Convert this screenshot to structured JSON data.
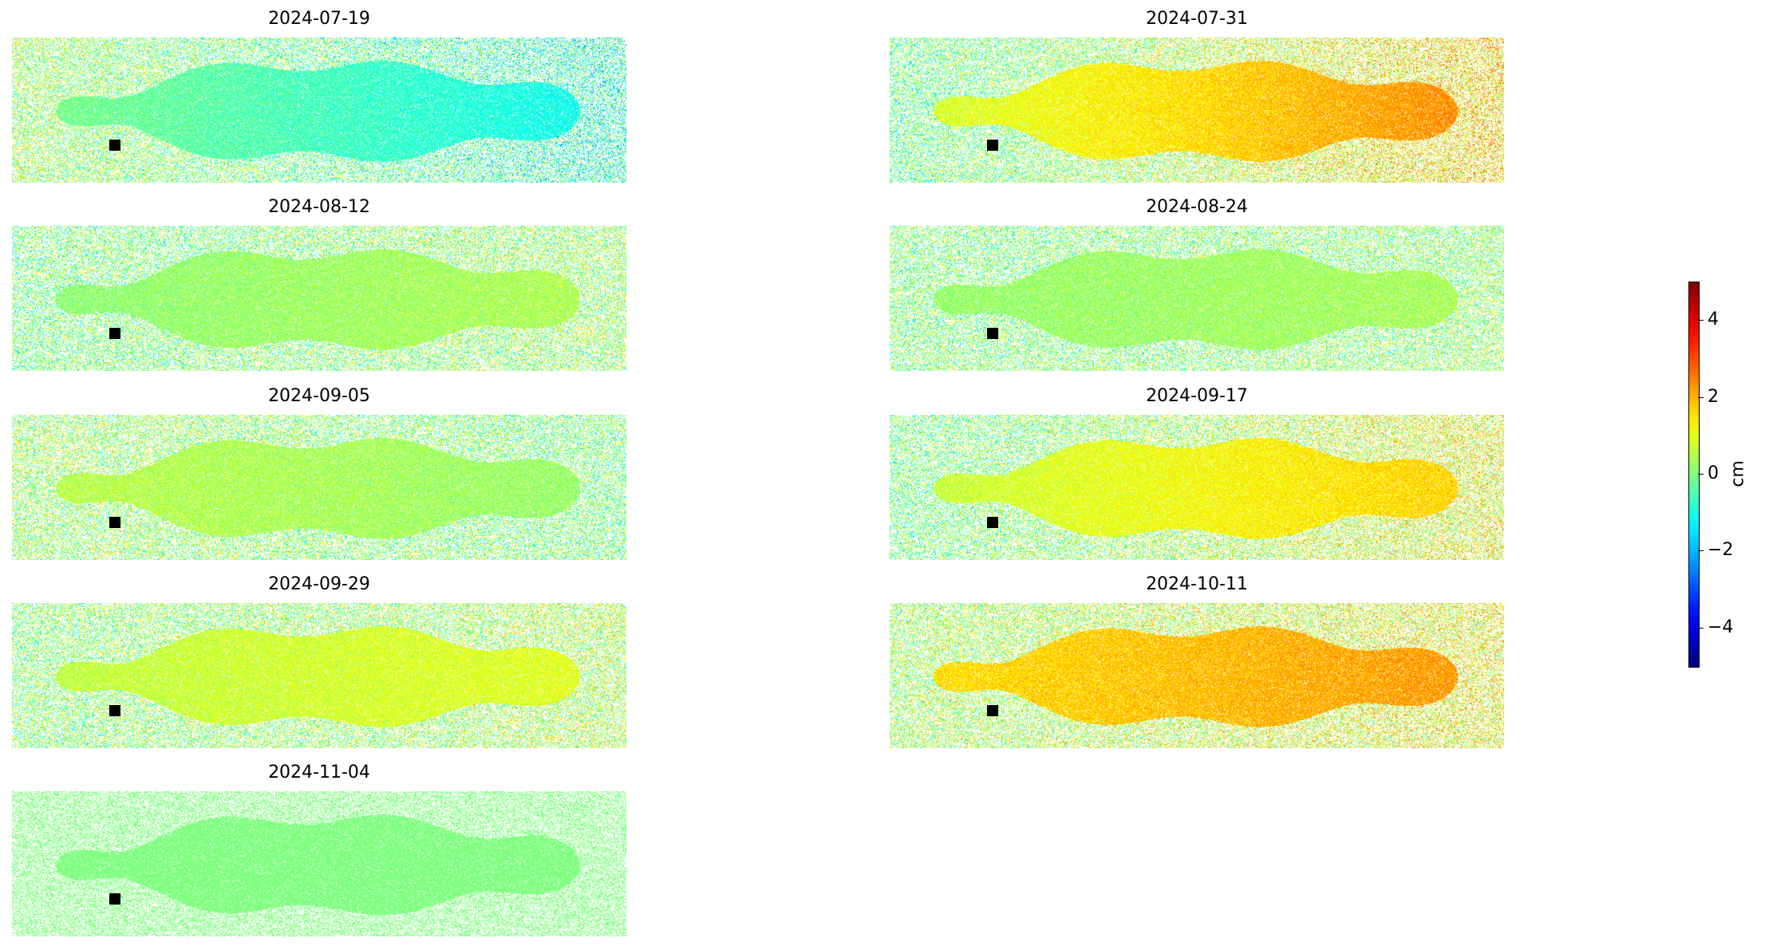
{
  "chart_data": {
    "type": "heatmap",
    "colormap": "jet",
    "panels": [
      {
        "title": "2024-07-19",
        "mean_value": -0.6,
        "trend": -0.6
      },
      {
        "title": "2024-07-31",
        "mean_value": 1.6,
        "trend": 0.9
      },
      {
        "title": "2024-08-12",
        "mean_value": 0.3,
        "trend": 0.2
      },
      {
        "title": "2024-08-24",
        "mean_value": 0.3,
        "trend": 0.1
      },
      {
        "title": "2024-09-05",
        "mean_value": 0.4,
        "trend": -0.2
      },
      {
        "title": "2024-09-17",
        "mean_value": 1.2,
        "trend": 0.6
      },
      {
        "title": "2024-09-29",
        "mean_value": 0.8,
        "trend": 0.2
      },
      {
        "title": "2024-10-11",
        "mean_value": 1.9,
        "trend": 0.4
      },
      {
        "title": "2024-11-04",
        "mean_value": 0.0,
        "trend": 0.0
      }
    ],
    "colorbar": {
      "label": "cm",
      "range": [
        -5,
        5
      ],
      "ticks": [
        4,
        2,
        0,
        -2,
        -4
      ],
      "tick_labels": [
        "4",
        "2",
        "0",
        "−2",
        "−4"
      ]
    }
  }
}
